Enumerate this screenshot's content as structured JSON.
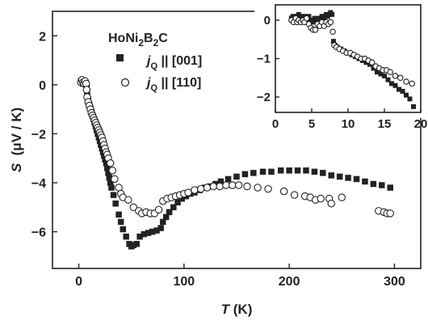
{
  "chart_data": [
    {
      "id": "main",
      "type": "scatter",
      "xlabel_var": "T",
      "xlabel_unit": " (K)",
      "ylabel_var": "S",
      "ylabel_unit": "  (μV / K)",
      "xlim": [
        -25,
        325
      ],
      "ylim": [
        -7.5,
        3
      ],
      "xticks": [
        0,
        100,
        200,
        300
      ],
      "yticks": [
        2,
        0,
        -2,
        -4,
        -6
      ],
      "compound": {
        "base": "HoNi",
        "sub1": "2",
        "mid": "B",
        "sub2": "2",
        "end": "C"
      },
      "series": [
        {
          "marker": "filled-square",
          "legend": {
            "prefix": "j",
            "sub": "Q",
            "suffix": " || [001]"
          },
          "color": "#222222",
          "points": [
            [
              2,
              0.15
            ],
            [
              3,
              0.1
            ],
            [
              4,
              0.05
            ],
            [
              5,
              0.12
            ],
            [
              6,
              0.1
            ],
            [
              7,
              0.05
            ],
            [
              7.5,
              -0.1
            ],
            [
              8,
              -0.4
            ],
            [
              9,
              -0.6
            ],
            [
              10,
              -0.8
            ],
            [
              11,
              -0.95
            ],
            [
              12,
              -1.1
            ],
            [
              13,
              -1.25
            ],
            [
              14,
              -1.4
            ],
            [
              15,
              -1.55
            ],
            [
              16,
              -1.7
            ],
            [
              17,
              -1.85
            ],
            [
              18,
              -2.0
            ],
            [
              19,
              -2.15
            ],
            [
              20,
              -2.3
            ],
            [
              21,
              -2.45
            ],
            [
              22,
              -2.6
            ],
            [
              23,
              -2.75
            ],
            [
              24,
              -2.9
            ],
            [
              25,
              -3.05
            ],
            [
              26,
              -3.2
            ],
            [
              27,
              -3.4
            ],
            [
              28,
              -3.6
            ],
            [
              29,
              -3.8
            ],
            [
              30,
              -4.0
            ],
            [
              31,
              -4.2
            ],
            [
              33,
              -4.5
            ],
            [
              35,
              -4.85
            ],
            [
              38,
              -5.3
            ],
            [
              40,
              -5.6
            ],
            [
              42,
              -5.9
            ],
            [
              45,
              -6.2
            ],
            [
              48,
              -6.5
            ],
            [
              50,
              -6.6
            ],
            [
              52,
              -6.55
            ],
            [
              55,
              -6.5
            ],
            [
              58,
              -6.2
            ],
            [
              62,
              -6.1
            ],
            [
              66,
              -6.05
            ],
            [
              70,
              -6.0
            ],
            [
              74,
              -5.95
            ],
            [
              78,
              -5.85
            ],
            [
              80,
              -5.6
            ],
            [
              83,
              -5.4
            ],
            [
              86,
              -5.2
            ],
            [
              90,
              -5.0
            ],
            [
              94,
              -4.8
            ],
            [
              98,
              -4.65
            ],
            [
              102,
              -4.55
            ],
            [
              106,
              -4.45
            ],
            [
              110,
              -4.4
            ],
            [
              115,
              -4.3
            ],
            [
              120,
              -4.2
            ],
            [
              125,
              -4.15
            ],
            [
              130,
              -4.05
            ],
            [
              135,
              -3.95
            ],
            [
              142,
              -3.85
            ],
            [
              150,
              -3.75
            ],
            [
              158,
              -3.65
            ],
            [
              166,
              -3.6
            ],
            [
              175,
              -3.55
            ],
            [
              183,
              -3.55
            ],
            [
              192,
              -3.5
            ],
            [
              200,
              -3.5
            ],
            [
              208,
              -3.5
            ],
            [
              216,
              -3.5
            ],
            [
              224,
              -3.55
            ],
            [
              232,
              -3.6
            ],
            [
              240,
              -3.7
            ],
            [
              248,
              -3.75
            ],
            [
              256,
              -3.8
            ],
            [
              264,
              -3.85
            ],
            [
              272,
              -3.95
            ],
            [
              280,
              -4.05
            ],
            [
              288,
              -4.1
            ],
            [
              296,
              -4.2
            ]
          ]
        },
        {
          "marker": "open-circle",
          "legend": {
            "prefix": "j",
            "sub": "Q",
            "suffix": " || [110]"
          },
          "color": "#222222",
          "points": [
            [
              2,
              0.1
            ],
            [
              3,
              0.2
            ],
            [
              4,
              0.1
            ],
            [
              5,
              0.05
            ],
            [
              6,
              0.15
            ],
            [
              7,
              0.05
            ],
            [
              7.5,
              -0.2
            ],
            [
              8,
              -0.5
            ],
            [
              9,
              -0.7
            ],
            [
              10,
              -0.85
            ],
            [
              11,
              -1.0
            ],
            [
              12,
              -1.15
            ],
            [
              13,
              -1.25
            ],
            [
              14,
              -1.35
            ],
            [
              15,
              -1.45
            ],
            [
              16,
              -1.55
            ],
            [
              17,
              -1.65
            ],
            [
              18,
              -1.75
            ],
            [
              19,
              -1.85
            ],
            [
              20,
              -1.95
            ],
            [
              21,
              -2.05
            ],
            [
              22,
              -2.15
            ],
            [
              23,
              -2.3
            ],
            [
              24,
              -2.45
            ],
            [
              25,
              -2.6
            ],
            [
              26,
              -2.75
            ],
            [
              27,
              -2.85
            ],
            [
              28,
              -3.0
            ],
            [
              30,
              -3.2
            ],
            [
              32,
              -3.5
            ],
            [
              34,
              -3.85
            ],
            [
              38,
              -4.2
            ],
            [
              40,
              -4.45
            ],
            [
              42,
              -4.6
            ],
            [
              47,
              -4.7
            ],
            [
              52,
              -5.0
            ],
            [
              57,
              -5.15
            ],
            [
              60,
              -5.25
            ],
            [
              64,
              -5.2
            ],
            [
              68,
              -5.25
            ],
            [
              72,
              -5.25
            ],
            [
              76,
              -5.1
            ],
            [
              80,
              -4.75
            ],
            [
              84,
              -4.65
            ],
            [
              88,
              -4.6
            ],
            [
              92,
              -4.55
            ],
            [
              96,
              -4.5
            ],
            [
              100,
              -4.45
            ],
            [
              104,
              -4.4
            ],
            [
              110,
              -4.3
            ],
            [
              116,
              -4.25
            ],
            [
              122,
              -4.2
            ],
            [
              128,
              -4.15
            ],
            [
              134,
              -4.15
            ],
            [
              140,
              -4.1
            ],
            [
              146,
              -4.1
            ],
            [
              152,
              -4.1
            ],
            [
              160,
              -4.15
            ],
            [
              170,
              -4.2
            ],
            [
              180,
              -4.25
            ],
            [
              195,
              -4.35
            ],
            [
              205,
              -4.5
            ],
            [
              215,
              -4.55
            ],
            [
              220,
              -4.6
            ],
            [
              225,
              -4.7
            ],
            [
              230,
              -4.65
            ],
            [
              238,
              -4.65
            ],
            [
              240,
              -4.85
            ],
            [
              250,
              -4.6
            ],
            [
              285,
              -5.15
            ],
            [
              290,
              -5.2
            ],
            [
              293,
              -5.25
            ],
            [
              296,
              -5.25
            ]
          ]
        }
      ]
    },
    {
      "id": "inset",
      "type": "scatter",
      "xlim": [
        0,
        20
      ],
      "ylim": [
        -2.4,
        0.4
      ],
      "xticks": [
        0,
        5,
        10,
        15,
        20
      ],
      "yticks": [
        0,
        -1,
        -2
      ],
      "series": [
        {
          "marker": "filled-square",
          "color": "#222222",
          "points": [
            [
              2.2,
              0.05
            ],
            [
              2.4,
              0.1
            ],
            [
              2.6,
              0.0
            ],
            [
              2.8,
              0.1
            ],
            [
              3.0,
              0.05
            ],
            [
              3.2,
              0.15
            ],
            [
              3.4,
              0.05
            ],
            [
              3.6,
              0.1
            ],
            [
              3.8,
              0.05
            ],
            [
              4.0,
              0.1
            ],
            [
              4.2,
              0.0
            ],
            [
              4.4,
              0.05
            ],
            [
              4.6,
              0.1
            ],
            [
              4.8,
              0.0
            ],
            [
              5.0,
              -0.05
            ],
            [
              5.2,
              0.0
            ],
            [
              5.4,
              0.05
            ],
            [
              5.6,
              -0.05
            ],
            [
              5.8,
              0.0
            ],
            [
              6.0,
              0.05
            ],
            [
              6.2,
              0.0
            ],
            [
              6.4,
              0.1
            ],
            [
              6.6,
              0.05
            ],
            [
              6.8,
              0.1
            ],
            [
              7.0,
              0.15
            ],
            [
              7.2,
              0.1
            ],
            [
              7.4,
              0.15
            ],
            [
              7.6,
              0.2
            ],
            [
              7.8,
              0.15
            ],
            [
              8.0,
              -0.55
            ],
            [
              8.2,
              -0.65
            ],
            [
              8.5,
              -0.7
            ],
            [
              9.0,
              -0.75
            ],
            [
              9.5,
              -0.8
            ],
            [
              10.0,
              -0.85
            ],
            [
              10.5,
              -0.9
            ],
            [
              11.0,
              -0.95
            ],
            [
              11.5,
              -1.0
            ],
            [
              12.0,
              -1.05
            ],
            [
              12.5,
              -1.1
            ],
            [
              13.0,
              -1.15
            ],
            [
              13.5,
              -1.25
            ],
            [
              14.0,
              -1.35
            ],
            [
              14.5,
              -1.4
            ],
            [
              15.0,
              -1.45
            ],
            [
              15.5,
              -1.55
            ],
            [
              16.0,
              -1.65
            ],
            [
              16.5,
              -1.7
            ],
            [
              17.0,
              -1.8
            ],
            [
              17.5,
              -1.85
            ],
            [
              18.0,
              -1.95
            ],
            [
              18.5,
              -2.05
            ],
            [
              19.0,
              -2.25
            ]
          ]
        },
        {
          "marker": "open-circle",
          "color": "#222222",
          "points": [
            [
              2.2,
              0.0
            ],
            [
              2.5,
              -0.05
            ],
            [
              2.8,
              0.05
            ],
            [
              3.0,
              -0.05
            ],
            [
              3.2,
              0.0
            ],
            [
              3.5,
              -0.05
            ],
            [
              3.8,
              0.0
            ],
            [
              4.0,
              -0.05
            ],
            [
              4.3,
              0.05
            ],
            [
              4.6,
              -0.1
            ],
            [
              4.9,
              -0.2
            ],
            [
              5.2,
              -0.25
            ],
            [
              5.5,
              -0.25
            ],
            [
              5.8,
              -0.1
            ],
            [
              6.1,
              -0.15
            ],
            [
              6.4,
              -0.05
            ],
            [
              6.7,
              -0.15
            ],
            [
              7.0,
              -0.05
            ],
            [
              7.3,
              -0.1
            ],
            [
              7.6,
              -0.05
            ],
            [
              7.9,
              -0.3
            ],
            [
              8.1,
              -0.65
            ],
            [
              8.4,
              -0.7
            ],
            [
              8.8,
              -0.75
            ],
            [
              9.3,
              -0.8
            ],
            [
              9.8,
              -0.85
            ],
            [
              10.3,
              -0.85
            ],
            [
              10.8,
              -0.9
            ],
            [
              11.3,
              -0.95
            ],
            [
              11.8,
              -1.0
            ],
            [
              12.3,
              -1.0
            ],
            [
              12.8,
              -1.05
            ],
            [
              13.3,
              -1.1
            ],
            [
              13.8,
              -1.2
            ],
            [
              14.3,
              -1.25
            ],
            [
              14.8,
              -1.3
            ],
            [
              15.3,
              -1.3
            ],
            [
              15.8,
              -1.35
            ],
            [
              16.5,
              -1.45
            ],
            [
              17.2,
              -1.5
            ],
            [
              18.0,
              -1.6
            ],
            [
              18.8,
              -1.65
            ]
          ]
        }
      ]
    }
  ]
}
